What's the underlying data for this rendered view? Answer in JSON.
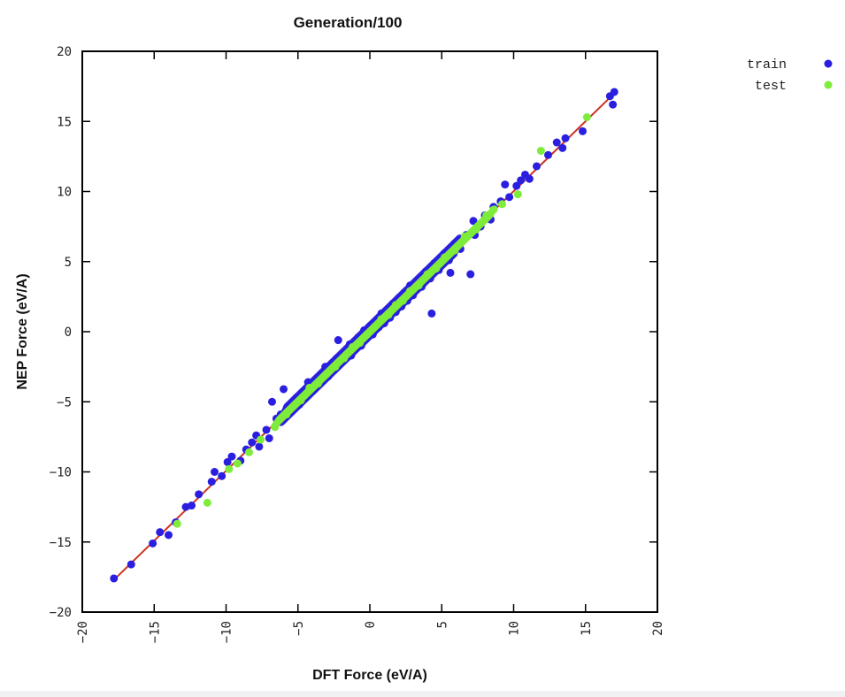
{
  "chart_data": {
    "type": "scatter",
    "title": "Generation/100",
    "xlabel": "DFT Force (eV/A)",
    "ylabel": "NEP Force (eV/A)",
    "xlim": [
      -20,
      20
    ],
    "ylim": [
      -20,
      20
    ],
    "xticks": [
      -20,
      -15,
      -10,
      -5,
      0,
      5,
      10,
      15,
      20
    ],
    "yticks": [
      -20,
      -15,
      -10,
      -5,
      0,
      5,
      10,
      15,
      20
    ],
    "grid": false,
    "legend_position": "top-right (outside plot)",
    "reference_line": {
      "from": [
        -17.8,
        -17.7
      ],
      "to": [
        17.0,
        17.0
      ],
      "color": "#cc3322"
    },
    "series": [
      {
        "name": "train",
        "color": "#2a1ee0",
        "points": [
          [
            -17.8,
            -17.6
          ],
          [
            -16.6,
            -16.6
          ],
          [
            -15.1,
            -15.1
          ],
          [
            -14.6,
            -14.3
          ],
          [
            -14.0,
            -14.5
          ],
          [
            -13.5,
            -13.6
          ],
          [
            -12.8,
            -12.5
          ],
          [
            -12.4,
            -12.4
          ],
          [
            -11.9,
            -11.6
          ],
          [
            -11.0,
            -10.7
          ],
          [
            -10.8,
            -10.0
          ],
          [
            -10.3,
            -10.3
          ],
          [
            -9.9,
            -9.3
          ],
          [
            -9.6,
            -8.9
          ],
          [
            -9.0,
            -9.2
          ],
          [
            -8.6,
            -8.4
          ],
          [
            -8.2,
            -7.9
          ],
          [
            -7.9,
            -7.4
          ],
          [
            -7.7,
            -8.2
          ],
          [
            -7.2,
            -7.0
          ],
          [
            -7.0,
            -7.6
          ],
          [
            -6.8,
            -5.0
          ],
          [
            -6.5,
            -6.2
          ],
          [
            -6.2,
            -5.9
          ],
          [
            -6.0,
            -4.1
          ],
          [
            -5.8,
            -5.6
          ],
          [
            -5.5,
            -5.2
          ],
          [
            -5.1,
            -4.7
          ],
          [
            -4.9,
            -5.2
          ],
          [
            -4.6,
            -4.3
          ],
          [
            -4.3,
            -3.6
          ],
          [
            -4.0,
            -4.2
          ],
          [
            -3.7,
            -3.5
          ],
          [
            -3.4,
            -3.1
          ],
          [
            -3.1,
            -2.5
          ],
          [
            -2.9,
            -3.2
          ],
          [
            -2.6,
            -2.3
          ],
          [
            -2.3,
            -1.9
          ],
          [
            -2.2,
            -0.6
          ],
          [
            -2.0,
            -2.2
          ],
          [
            -1.7,
            -1.4
          ],
          [
            -1.4,
            -0.9
          ],
          [
            -1.3,
            -1.7
          ],
          [
            -1.1,
            -0.8
          ],
          [
            -0.8,
            -0.4
          ],
          [
            -0.6,
            -1.0
          ],
          [
            -0.4,
            0.1
          ],
          [
            -0.2,
            -0.3
          ],
          [
            0.0,
            0.4
          ],
          [
            0.2,
            -0.2
          ],
          [
            0.4,
            0.7
          ],
          [
            0.6,
            0.3
          ],
          [
            0.8,
            1.3
          ],
          [
            1.0,
            0.6
          ],
          [
            1.2,
            1.5
          ],
          [
            1.4,
            1.0
          ],
          [
            1.6,
            2.0
          ],
          [
            1.8,
            1.4
          ],
          [
            2.0,
            2.4
          ],
          [
            2.2,
            1.8
          ],
          [
            2.4,
            2.8
          ],
          [
            2.6,
            2.2
          ],
          [
            2.8,
            3.3
          ],
          [
            3.0,
            2.6
          ],
          [
            3.3,
            3.6
          ],
          [
            3.6,
            3.2
          ],
          [
            3.9,
            4.3
          ],
          [
            4.2,
            3.8
          ],
          [
            4.5,
            4.9
          ],
          [
            4.8,
            4.4
          ],
          [
            4.3,
            1.3
          ],
          [
            5.2,
            5.6
          ],
          [
            5.5,
            5.1
          ],
          [
            5.6,
            4.2
          ],
          [
            5.9,
            6.3
          ],
          [
            6.3,
            5.9
          ],
          [
            6.7,
            6.9
          ],
          [
            7.0,
            4.1
          ],
          [
            7.3,
            6.9
          ],
          [
            7.2,
            7.9
          ],
          [
            7.7,
            7.5
          ],
          [
            8.0,
            8.3
          ],
          [
            8.4,
            8.0
          ],
          [
            8.6,
            8.9
          ],
          [
            9.1,
            9.3
          ],
          [
            9.4,
            10.5
          ],
          [
            9.7,
            9.6
          ],
          [
            10.2,
            10.4
          ],
          [
            10.5,
            10.8
          ],
          [
            10.8,
            11.2
          ],
          [
            11.1,
            10.9
          ],
          [
            11.6,
            11.8
          ],
          [
            12.4,
            12.6
          ],
          [
            13.0,
            13.5
          ],
          [
            13.4,
            13.1
          ],
          [
            13.6,
            13.8
          ],
          [
            14.8,
            14.3
          ],
          [
            16.7,
            16.8
          ],
          [
            16.9,
            16.2
          ],
          [
            17.0,
            17.1
          ]
        ]
      },
      {
        "name": "test",
        "color": "#7eec3a",
        "points": [
          [
            -13.4,
            -13.7
          ],
          [
            -11.3,
            -12.2
          ],
          [
            -9.8,
            -9.8
          ],
          [
            -9.2,
            -9.4
          ],
          [
            -8.4,
            -8.6
          ],
          [
            -7.6,
            -7.7
          ],
          [
            -6.6,
            -6.8
          ],
          [
            -5.8,
            -5.9
          ],
          [
            -4.8,
            -4.9
          ],
          [
            -4.2,
            -4.0
          ],
          [
            -3.6,
            -3.7
          ],
          [
            -3.0,
            -3.0
          ],
          [
            -2.4,
            -2.5
          ],
          [
            -1.8,
            -1.9
          ],
          [
            -1.2,
            -1.1
          ],
          [
            -0.7,
            -0.8
          ],
          [
            -0.2,
            -0.2
          ],
          [
            0.3,
            0.3
          ],
          [
            0.8,
            0.9
          ],
          [
            1.3,
            1.2
          ],
          [
            1.8,
            1.9
          ],
          [
            2.3,
            2.2
          ],
          [
            2.8,
            2.9
          ],
          [
            3.4,
            3.3
          ],
          [
            4.0,
            4.1
          ],
          [
            4.6,
            4.5
          ],
          [
            5.2,
            5.3
          ],
          [
            5.9,
            5.8
          ],
          [
            6.6,
            6.8
          ],
          [
            7.4,
            7.3
          ],
          [
            8.1,
            8.3
          ],
          [
            8.6,
            8.7
          ],
          [
            9.2,
            9.1
          ],
          [
            10.3,
            9.8
          ],
          [
            11.9,
            12.9
          ],
          [
            15.1,
            15.3
          ]
        ]
      }
    ]
  }
}
